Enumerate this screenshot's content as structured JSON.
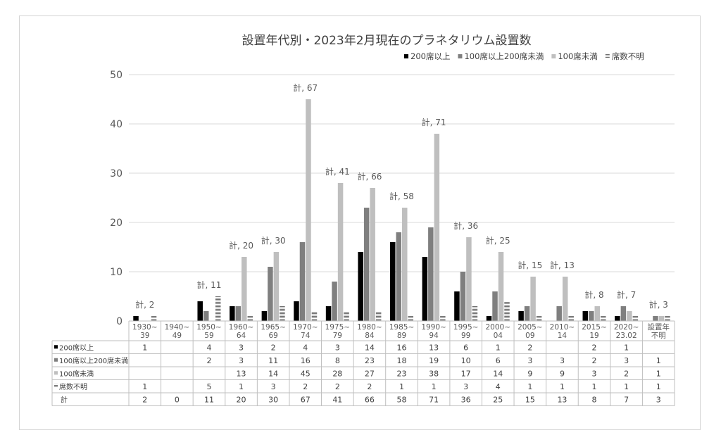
{
  "chart_data": {
    "type": "bar",
    "title": "設置年代別・2023年2月現在のプラネタリウム設置数",
    "ylim": [
      0,
      50
    ],
    "yticks": [
      0,
      10,
      20,
      30,
      40,
      50
    ],
    "grid": true,
    "legend_position": "top-right",
    "categories": [
      "1930-39",
      "1940-49",
      "1950-59",
      "1960-64",
      "1965-69",
      "1970-74",
      "1975-79",
      "1980-84",
      "1985-89",
      "1990-94",
      "1995-99",
      "2000-04",
      "2005-09",
      "2010-14",
      "2015-19",
      "2020-23.02",
      "設置年不明"
    ],
    "category_labels": [
      [
        "1930~",
        "39"
      ],
      [
        "1940~",
        "49"
      ],
      [
        "1950~",
        "59"
      ],
      [
        "1960~",
        "64"
      ],
      [
        "1965~",
        "69"
      ],
      [
        "1970~",
        "74"
      ],
      [
        "1975~",
        "79"
      ],
      [
        "1980~",
        "84"
      ],
      [
        "1985~",
        "89"
      ],
      [
        "1990~",
        "94"
      ],
      [
        "1995~",
        "99"
      ],
      [
        "2000~",
        "04"
      ],
      [
        "2005~",
        "09"
      ],
      [
        "2010~",
        "14"
      ],
      [
        "2015~",
        "19"
      ],
      [
        "2020~",
        "23.02"
      ],
      [
        "設置年",
        "不明"
      ]
    ],
    "series": [
      {
        "name": "200席以上",
        "color": "#000000",
        "pattern": "solid",
        "values": [
          1,
          0,
          4,
          3,
          2,
          4,
          3,
          14,
          16,
          13,
          6,
          1,
          2,
          0,
          2,
          1,
          0
        ],
        "table": [
          "1",
          "",
          "4",
          "3",
          "2",
          "4",
          "3",
          "14",
          "16",
          "13",
          "6",
          "1",
          "2",
          "",
          "2",
          "1",
          ""
        ]
      },
      {
        "name": "100席以上200席未満",
        "color": "#7f7f7f",
        "pattern": "solid",
        "values": [
          0,
          0,
          2,
          3,
          11,
          16,
          8,
          23,
          18,
          19,
          10,
          6,
          3,
          3,
          2,
          3,
          1
        ],
        "table": [
          "",
          "",
          "2",
          "3",
          "11",
          "16",
          "8",
          "23",
          "18",
          "19",
          "10",
          "6",
          "3",
          "3",
          "2",
          "3",
          "1"
        ]
      },
      {
        "name": "100席未満",
        "color": "#bfbfbf",
        "pattern": "solid",
        "values": [
          0,
          0,
          0,
          13,
          14,
          45,
          28,
          27,
          23,
          38,
          17,
          14,
          9,
          9,
          3,
          2,
          1
        ],
        "table": [
          "",
          "",
          "",
          "13",
          "14",
          "45",
          "28",
          "27",
          "23",
          "38",
          "17",
          "14",
          "9",
          "9",
          "3",
          "2",
          "1"
        ]
      },
      {
        "name": "席数不明",
        "color": "#8c8c8c",
        "pattern": "stripes",
        "values": [
          1,
          0,
          5,
          1,
          3,
          2,
          2,
          2,
          1,
          1,
          3,
          4,
          1,
          1,
          1,
          1,
          1
        ],
        "table": [
          "1",
          "",
          "5",
          "1",
          "3",
          "2",
          "2",
          "2",
          "1",
          "1",
          "3",
          "4",
          "1",
          "1",
          "1",
          "1",
          "1"
        ]
      }
    ],
    "totals": {
      "name": "計",
      "values": [
        "2",
        "0",
        "11",
        "20",
        "30",
        "67",
        "41",
        "66",
        "58",
        "71",
        "36",
        "25",
        "15",
        "13",
        "8",
        "7",
        "3"
      ],
      "labels": [
        "計, 2",
        "",
        "計, 11",
        "計, 20",
        "計, 30",
        "計, 67",
        "計, 41",
        "計, 66",
        "計, 58",
        "計, 71",
        "計, 36",
        "計, 25",
        "計, 15",
        "計, 13",
        "計, 8",
        "計, 7",
        "計, 3"
      ]
    }
  }
}
